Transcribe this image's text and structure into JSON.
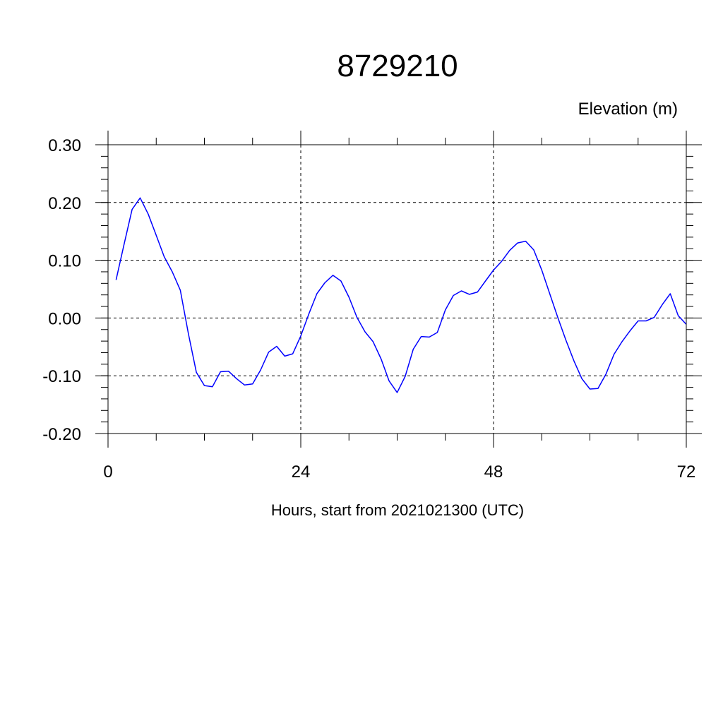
{
  "chart_data": {
    "type": "line",
    "title": "8729210",
    "ylabel": "Elevation (m)",
    "xlabel": "Hours, start from 2021021300 (UTC)",
    "xlim": [
      0,
      72
    ],
    "ylim": [
      -0.2,
      0.3
    ],
    "x_ticks": [
      0,
      24,
      48,
      72
    ],
    "x_tick_labels": [
      "0",
      "24",
      "48",
      "72"
    ],
    "y_ticks": [
      -0.2,
      -0.1,
      0.0,
      0.1,
      0.2,
      0.3
    ],
    "y_tick_labels": [
      "-0.20",
      "-0.10",
      "0.00",
      "0.10",
      "0.20",
      "0.30"
    ],
    "grid": true,
    "line_color": "#0000ff",
    "series": [
      {
        "x": [
          1,
          2,
          3,
          4,
          5,
          6,
          7,
          8,
          9,
          10,
          11,
          12,
          13,
          14,
          15,
          16,
          17,
          18,
          19,
          20,
          21,
          22,
          23,
          24,
          25,
          26,
          27,
          28,
          29,
          30,
          31,
          32,
          33,
          34,
          35,
          36,
          37,
          38,
          39,
          40,
          41,
          42,
          43,
          44,
          45,
          46,
          47,
          48,
          49,
          50,
          51,
          52,
          53,
          54,
          55,
          56,
          57,
          58,
          59,
          60,
          61,
          62,
          63,
          64,
          65,
          66,
          67,
          68,
          69,
          70,
          71,
          72
        ],
        "values": [
          0.066,
          0.128,
          0.188,
          0.208,
          0.18,
          0.143,
          0.106,
          0.08,
          0.048,
          -0.027,
          -0.094,
          -0.117,
          -0.119,
          -0.093,
          -0.092,
          -0.105,
          -0.116,
          -0.114,
          -0.09,
          -0.059,
          -0.049,
          -0.066,
          -0.062,
          -0.031,
          0.007,
          0.042,
          0.061,
          0.074,
          0.064,
          0.036,
          0.001,
          -0.024,
          -0.041,
          -0.071,
          -0.109,
          -0.129,
          -0.101,
          -0.054,
          -0.032,
          -0.033,
          -0.025,
          0.014,
          0.039,
          0.047,
          0.041,
          0.045,
          0.064,
          0.083,
          0.098,
          0.117,
          0.13,
          0.133,
          0.118,
          0.083,
          0.042,
          0.001,
          -0.038,
          -0.074,
          -0.105,
          -0.123,
          -0.122,
          -0.097,
          -0.063,
          -0.041,
          -0.022,
          -0.005,
          -0.005,
          0.001,
          0.023,
          0.042,
          0.004,
          -0.011
        ]
      }
    ]
  }
}
